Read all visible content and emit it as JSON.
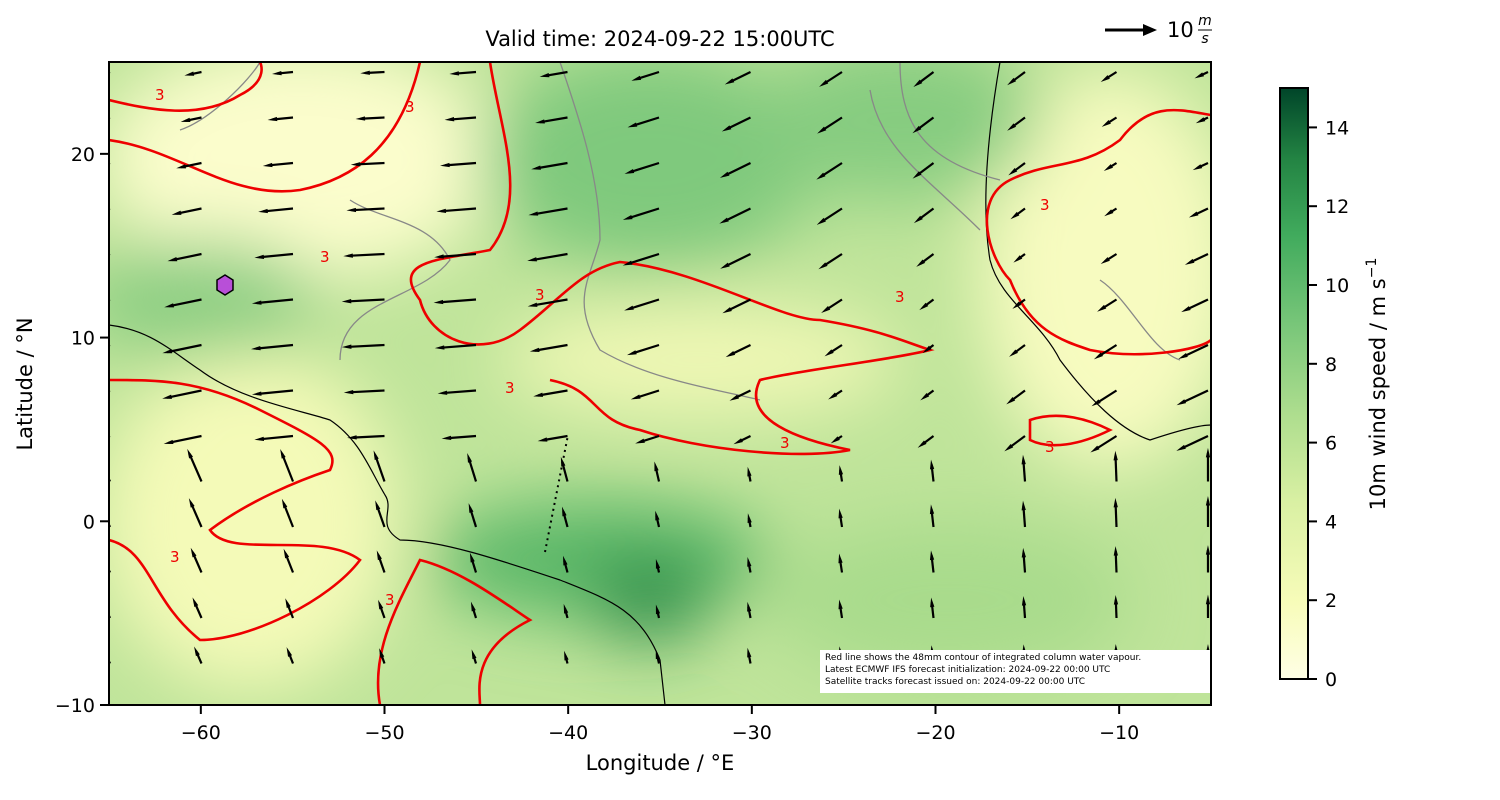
{
  "map": {
    "title": "Valid time: 2024-09-22 15:00UTC",
    "xlabel": "Longitude / °E",
    "ylabel": "Latitude / °N",
    "xlim": [
      -65,
      -5
    ],
    "ylim": [
      -10,
      25
    ],
    "xticks": [
      {
        "value": -60,
        "label": "−60"
      },
      {
        "value": -50,
        "label": "−50"
      },
      {
        "value": -40,
        "label": "−40"
      },
      {
        "value": -30,
        "label": "−30"
      },
      {
        "value": -20,
        "label": "−20"
      },
      {
        "value": -10,
        "label": "−10"
      }
    ],
    "yticks": [
      {
        "value": -10,
        "label": "−10"
      },
      0,
      10,
      20
    ],
    "colorbar": {
      "label": "10m wind speed / m s",
      "label_exponent": "−1",
      "clim": [
        0,
        15
      ],
      "ticks": [
        0,
        2,
        4,
        6,
        8,
        10,
        12,
        14
      ]
    },
    "wind_key": {
      "value": "10",
      "unit_numerator": "m",
      "unit_denominator": "s"
    },
    "contour_label": "3",
    "notes": [
      "Red line shows the 48mm contour of integrated column water vapour.",
      "Latest ECMWF IFS forecast initialization: 2024-09-22 00:00 UTC",
      "Satellite tracks forecast issued on: 2024-09-22 00:00 UTC"
    ]
  }
}
